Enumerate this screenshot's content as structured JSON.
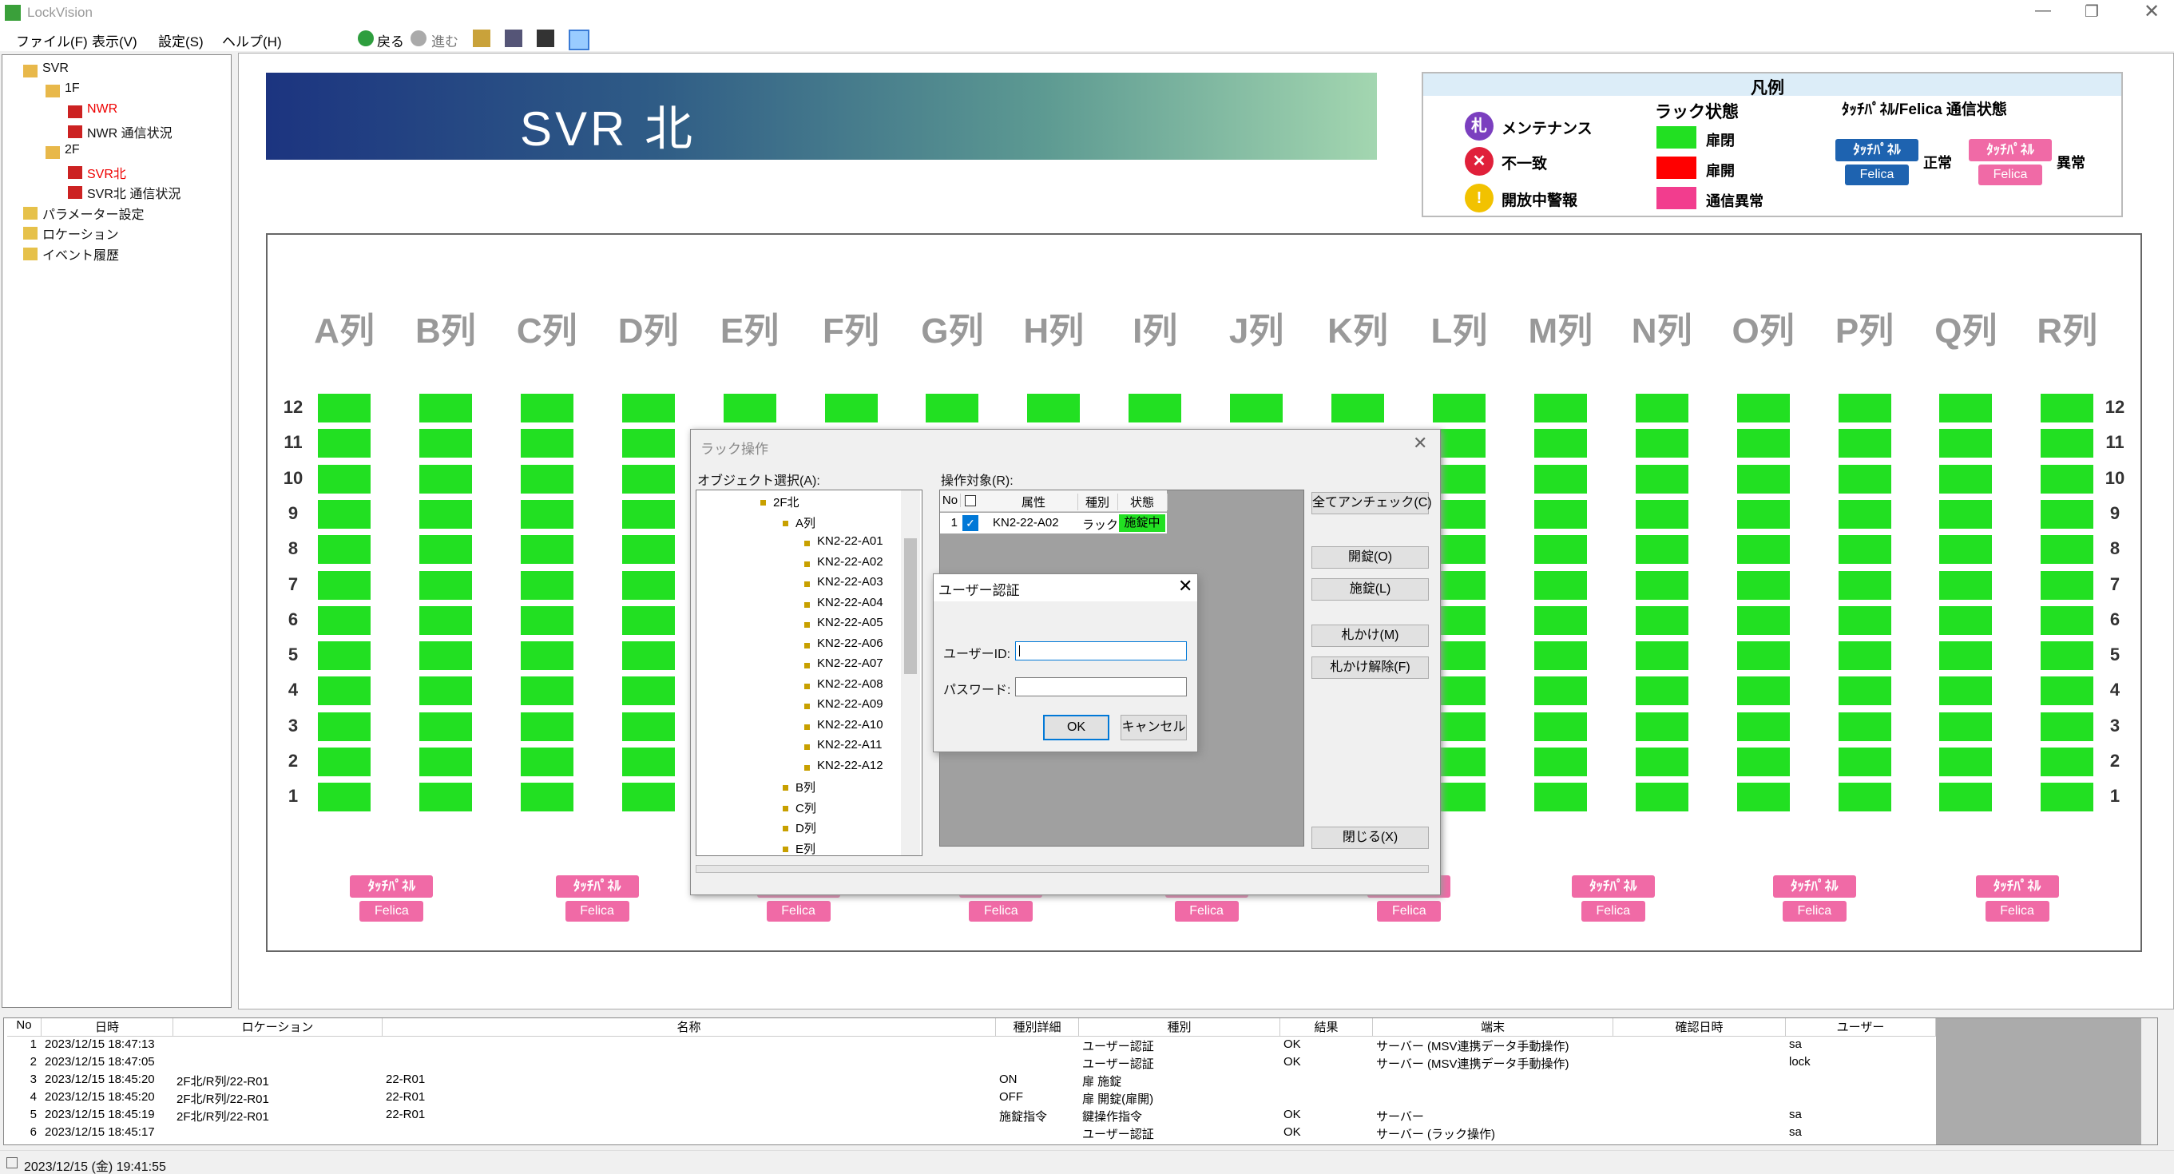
{
  "app": {
    "title": "LockVision",
    "menu": [
      "ファイル(F)",
      "表示(V)",
      "設定(S)",
      "ヘルプ(H)"
    ],
    "toolbar": [
      "戻る",
      "進む"
    ]
  },
  "nav_tree": [
    {
      "label": "SVR",
      "children": [
        {
          "label": "1F",
          "children": [
            {
              "label": "NWR",
              "alert": true
            },
            {
              "label": "NWR 通信状況"
            }
          ]
        },
        {
          "label": "2F",
          "children": [
            {
              "label": "SVR北",
              "alert": true
            },
            {
              "label": "SVR北 通信状況"
            }
          ]
        }
      ]
    },
    {
      "label": "パラメーター設定"
    },
    {
      "label": "ロケーション"
    },
    {
      "label": "イベント履歴"
    }
  ],
  "banner": "SVR 北",
  "legend": {
    "title": "凡例",
    "markers": [
      {
        "icon": "札",
        "label": "メンテナンス"
      },
      {
        "label": "不一致"
      },
      {
        "label": "開放中警報"
      }
    ],
    "rack_state": {
      "title": "ラック状態",
      "items": [
        {
          "label": "扉閉",
          "color": "#22e022"
        },
        {
          "label": "扉開",
          "color": "#ff0000"
        },
        {
          "label": "通信異常",
          "color": "#f23d8e"
        }
      ]
    },
    "comm_state": {
      "title": "ﾀｯﾁﾊﾟﾈﾙ/Felica 通信状態",
      "items": [
        {
          "panel": "ﾀｯﾁﾊﾟﾈﾙ",
          "felica": "Felica",
          "label": "正常",
          "color": "#1e63b0"
        },
        {
          "panel": "ﾀｯﾁﾊﾟﾈﾙ",
          "felica": "Felica",
          "label": "異常",
          "color": "#f06aa6"
        }
      ]
    }
  },
  "rack_map": {
    "columns": [
      "A列",
      "B列",
      "C列",
      "D列",
      "E列",
      "F列",
      "G列",
      "H列",
      "I列",
      "J列",
      "K列",
      "L列",
      "M列",
      "N列",
      "O列",
      "P列",
      "Q列",
      "R列"
    ],
    "rows": [
      "12",
      "11",
      "10",
      "9",
      "8",
      "7",
      "6",
      "5",
      "4",
      "3",
      "2",
      "1"
    ],
    "rack_color": "#22e022",
    "panels": [
      {
        "panel": "ﾀｯﾁﾊﾟﾈﾙ",
        "felica": "Felica"
      },
      {
        "panel": "ﾀｯﾁﾊﾟﾈﾙ",
        "felica": "Felica"
      },
      {
        "panel": "ﾀｯﾁﾊﾟﾈﾙ",
        "felica": "Felica"
      },
      {
        "panel": "ﾀｯﾁﾊﾟﾈﾙ",
        "felica": "Felica"
      },
      {
        "panel": "ﾀｯﾁﾊﾟﾈﾙ",
        "felica": "Felica"
      },
      {
        "panel": "ﾀｯﾁﾊﾟﾈﾙ",
        "felica": "Felica"
      },
      {
        "panel": "ﾀｯﾁﾊﾟﾈﾙ",
        "felica": "Felica"
      },
      {
        "panel": "ﾀｯﾁﾊﾟﾈﾙ",
        "felica": "Felica"
      },
      {
        "panel": "ﾀｯﾁﾊﾟﾈﾙ",
        "felica": "Felica"
      }
    ]
  },
  "rack_dialog": {
    "title": "ラック操作",
    "object_label": "オブジェクト選択(A):",
    "tree": {
      "root": "2F北",
      "open": {
        "label": "A列",
        "items": [
          "KN2-22-A01",
          "KN2-22-A02",
          "KN2-22-A03",
          "KN2-22-A04",
          "KN2-22-A05",
          "KN2-22-A06",
          "KN2-22-A07",
          "KN2-22-A08",
          "KN2-22-A09",
          "KN2-22-A10",
          "KN2-22-A11",
          "KN2-22-A12"
        ]
      },
      "closed": [
        "B列",
        "C列",
        "D列",
        "E列"
      ]
    },
    "target_label": "操作対象(R):",
    "headers": [
      "No",
      "属性",
      "種別",
      "状態"
    ],
    "rows": [
      {
        "no": "1",
        "name": "KN2-22-A02",
        "kind": "ラック",
        "state": "施錠中",
        "checked": true
      }
    ],
    "buttons": [
      "全てアンチェック(C)",
      "開錠(O)",
      "施錠(L)",
      "札かけ(M)",
      "札かけ解除(F)",
      "閉じる(X)"
    ]
  },
  "auth_dialog": {
    "title": "ユーザー認証",
    "user_label": "ユーザーID:",
    "password_label": "パスワード:",
    "ok": "OK",
    "cancel": "キャンセル"
  },
  "event_log": {
    "headers": [
      "No",
      "日時",
      "ロケーション",
      "名称",
      "種別詳細",
      "種別",
      "結果",
      "端末",
      "確認日時",
      "ユーザー"
    ],
    "rows": [
      [
        "1",
        "2023/12/15 18:47:13",
        null,
        null,
        null,
        "ユーザー認証",
        "OK",
        "サーバー (MSV連携データ手動操作)",
        null,
        "sa"
      ],
      [
        "2",
        "2023/12/15 18:47:05",
        null,
        null,
        null,
        "ユーザー認証",
        "OK",
        "サーバー (MSV連携データ手動操作)",
        null,
        "lock"
      ],
      [
        "3",
        "2023/12/15 18:45:20",
        "2F北/R列/22-R01",
        "22-R01",
        "ON",
        "扉 施錠",
        null,
        null,
        null,
        null
      ],
      [
        "4",
        "2023/12/15 18:45:20",
        "2F北/R列/22-R01",
        "22-R01",
        "OFF",
        "扉 開錠(扉開)",
        null,
        null,
        null,
        null
      ],
      [
        "5",
        "2023/12/15 18:45:19",
        "2F北/R列/22-R01",
        "22-R01",
        "施錠指令",
        "鍵操作指令",
        "OK",
        "サーバー",
        null,
        "sa"
      ],
      [
        "6",
        "2023/12/15 18:45:17",
        null,
        null,
        null,
        "ユーザー認証",
        "OK",
        "サーバー (ラック操作)",
        null,
        "sa"
      ]
    ]
  },
  "status_bar": "2023/12/15 (金) 19:41:55"
}
